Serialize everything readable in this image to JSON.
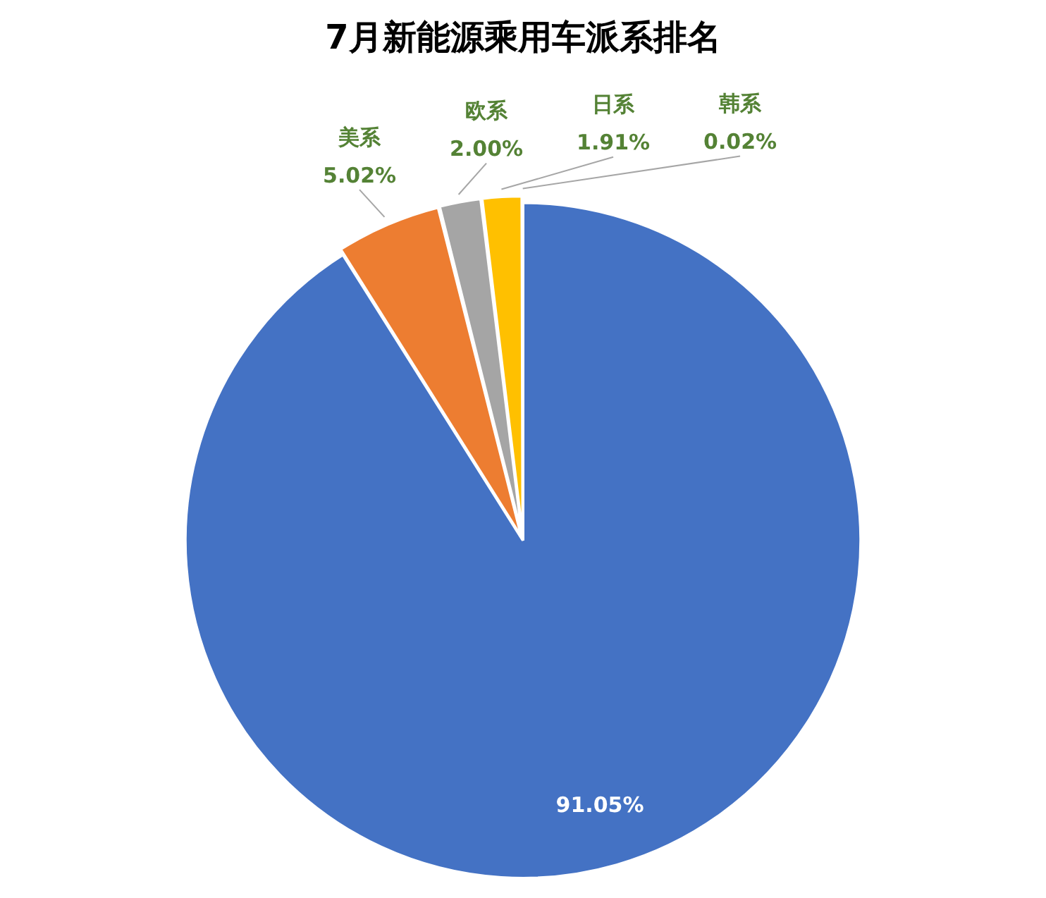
{
  "chart_data": {
    "type": "pie",
    "title": "7月新能源乘用车派系排名",
    "categories": [
      null,
      "美系",
      "欧系",
      "日系",
      "韩系"
    ],
    "values": [
      91.05,
      5.02,
      2.0,
      1.91,
      0.02
    ],
    "colors": [
      "#4472c4",
      "#ed7d31",
      "#a5a5a5",
      "#ffc000",
      "#5b9bd5"
    ],
    "value_labels": [
      "91.05%",
      "5.02%",
      "2.00%",
      "1.91%",
      "0.02%"
    ],
    "legend": false
  }
}
